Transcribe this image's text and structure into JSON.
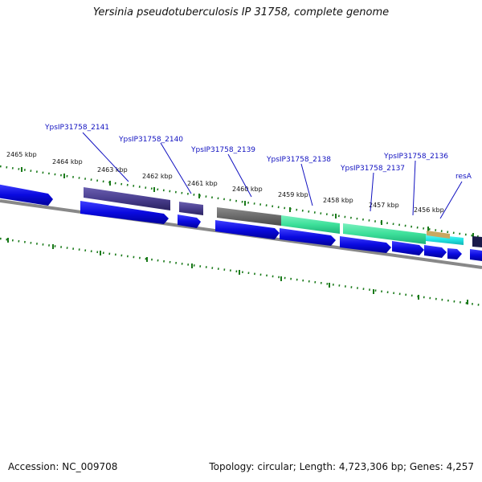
{
  "title": "Yersinia pseudotuberculosis IP 31758, complete genome",
  "accession": "Accession: NC_009708",
  "summary": "Topology: circular; Length: 4,723,306 bp; Genes: 4,257",
  "scale_unit": "kbp",
  "scale_ticks": [
    "2465 kbp",
    "2464 kbp",
    "2463 kbp",
    "2462 kbp",
    "2461 kbp",
    "2460 kbp",
    "2459 kbp",
    "2458 kbp",
    "2457 kbp",
    "2456 kbp"
  ],
  "gene_labels": [
    "YpsIP31758_2141",
    "YpsIP31758_2140",
    "YpsIP31758_2139",
    "YpsIP31758_2138",
    "YpsIP31758_2137",
    "YpsIP31758_2136",
    "resA"
  ],
  "colors": {
    "backbone": "#888888",
    "scale_dots": "#1a7a1a",
    "gene_blue": "#1010e0",
    "cog_purple": "#4a3f8f",
    "cog_grey": "#6a6a6a",
    "cog_teal": "#3de09a",
    "cog_cyan": "#22e6e6",
    "cog_tan": "#c9a860",
    "label_blue": "#1010c0"
  }
}
